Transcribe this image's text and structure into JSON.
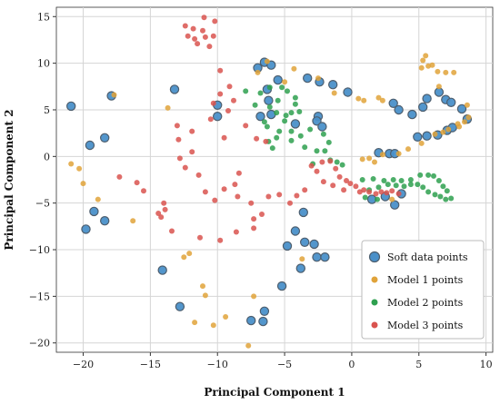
{
  "chart_data": {
    "type": "scatter",
    "title": "",
    "xlabel": "Principal Component 1",
    "ylabel": "Principal Component 2",
    "xlim": [
      -22,
      10.5
    ],
    "ylim": [
      -21,
      16
    ],
    "xticks": [
      -20,
      -15,
      -10,
      -5,
      0,
      5,
      10
    ],
    "yticks": [
      -20,
      -15,
      -10,
      -5,
      0,
      5,
      10,
      15
    ],
    "grid": true,
    "legend_position": "bottom-right",
    "series": [
      {
        "name": "Soft data points",
        "color": "#4a90c9",
        "points": [
          [
            -20.9,
            5.4
          ],
          [
            -19.5,
            1.2
          ],
          [
            -18.4,
            2.0
          ],
          [
            -17.9,
            6.5
          ],
          [
            -13.2,
            7.2
          ],
          [
            -14.1,
            -12.2
          ],
          [
            -12.8,
            -16.1
          ],
          [
            -10.0,
            4.3
          ],
          [
            -7.5,
            -17.6
          ],
          [
            -6.6,
            -17.7
          ],
          [
            -6.5,
            -16.6
          ],
          [
            -5.2,
            -13.9
          ],
          [
            -4.8,
            -9.6
          ],
          [
            -4.2,
            -8.0
          ],
          [
            -3.6,
            -6.0
          ],
          [
            -3.5,
            -9.2
          ],
          [
            -2.8,
            -9.4
          ],
          [
            -2.6,
            -10.8
          ],
          [
            -2.0,
            -10.8
          ],
          [
            -3.8,
            -12.0
          ],
          [
            -19.8,
            -7.8
          ],
          [
            -18.4,
            -6.9
          ],
          [
            -19.2,
            -5.9
          ],
          [
            -7.0,
            9.5
          ],
          [
            -6.5,
            10.1
          ],
          [
            -6.0,
            9.8
          ],
          [
            -5.5,
            8.2
          ],
          [
            -6.3,
            7.2
          ],
          [
            -6.2,
            6.0
          ],
          [
            -6.0,
            4.5
          ],
          [
            -4.2,
            3.5
          ],
          [
            -2.5,
            4.3
          ],
          [
            -2.6,
            3.8
          ],
          [
            -2.2,
            3.2
          ],
          [
            -3.3,
            8.4
          ],
          [
            -2.4,
            8.0
          ],
          [
            -1.4,
            7.7
          ],
          [
            -0.3,
            6.9
          ],
          [
            3.1,
            5.7
          ],
          [
            3.5,
            5.0
          ],
          [
            4.5,
            4.5
          ],
          [
            5.3,
            5.3
          ],
          [
            5.6,
            6.2
          ],
          [
            6.5,
            6.9
          ],
          [
            7.0,
            6.1
          ],
          [
            7.4,
            5.8
          ],
          [
            8.2,
            5.1
          ],
          [
            8.6,
            4.0
          ],
          [
            4.9,
            2.1
          ],
          [
            5.6,
            2.2
          ],
          [
            6.4,
            2.3
          ],
          [
            7.1,
            2.8
          ],
          [
            7.5,
            3.1
          ],
          [
            2.0,
            0.4
          ],
          [
            2.8,
            0.3
          ],
          [
            3.2,
            0.3
          ],
          [
            1.5,
            -4.6
          ],
          [
            2.5,
            -4.3
          ],
          [
            3.2,
            -5.2
          ],
          [
            3.7,
            -4.0
          ],
          [
            -6.8,
            4.3
          ],
          [
            -10.0,
            5.5
          ]
        ]
      },
      {
        "name": "Model 1 points",
        "color": "#e0a33a",
        "points": [
          [
            -20.9,
            -0.8
          ],
          [
            -20.3,
            -1.3
          ],
          [
            -20.0,
            -2.9
          ],
          [
            -18.9,
            -4.6
          ],
          [
            -17.7,
            6.6
          ],
          [
            -16.3,
            -6.9
          ],
          [
            -13.7,
            5.2
          ],
          [
            -12.5,
            -10.8
          ],
          [
            -12.1,
            -10.4
          ],
          [
            -11.1,
            -13.9
          ],
          [
            -10.9,
            -14.9
          ],
          [
            -11.7,
            -17.8
          ],
          [
            -10.3,
            -18.1
          ],
          [
            -9.4,
            -17.2
          ],
          [
            -7.7,
            -20.3
          ],
          [
            -7.3,
            -15.0
          ],
          [
            -3.7,
            -11.0
          ],
          [
            -7.0,
            9.0
          ],
          [
            -6.3,
            10.2
          ],
          [
            -4.3,
            9.4
          ],
          [
            -5.0,
            8.0
          ],
          [
            -2.5,
            8.4
          ],
          [
            -1.3,
            6.8
          ],
          [
            0.5,
            6.2
          ],
          [
            0.9,
            6.0
          ],
          [
            2.0,
            6.3
          ],
          [
            2.3,
            6.0
          ],
          [
            5.2,
            9.5
          ],
          [
            5.3,
            10.3
          ],
          [
            5.5,
            10.8
          ],
          [
            5.7,
            9.7
          ],
          [
            6.0,
            9.8
          ],
          [
            6.4,
            9.1
          ],
          [
            7.0,
            9.0
          ],
          [
            7.6,
            9.0
          ],
          [
            6.5,
            7.5
          ],
          [
            8.6,
            5.5
          ],
          [
            8.7,
            4.2
          ],
          [
            8.4,
            3.7
          ],
          [
            7.9,
            3.5
          ],
          [
            8.0,
            3.2
          ],
          [
            7.2,
            2.9
          ],
          [
            6.8,
            2.6
          ],
          [
            6.2,
            2.4
          ],
          [
            5.2,
            1.4
          ],
          [
            4.2,
            0.8
          ],
          [
            3.5,
            0.3
          ],
          [
            2.3,
            0.2
          ],
          [
            1.7,
            -0.6
          ],
          [
            1.3,
            -0.2
          ],
          [
            0.8,
            -0.3
          ],
          [
            3.0,
            -4.6
          ]
        ]
      },
      {
        "name": "Model 2 points",
        "color": "#2ea04f",
        "points": [
          [
            -7.9,
            7.0
          ],
          [
            -6.8,
            6.8
          ],
          [
            -6.1,
            7.4
          ],
          [
            -5.2,
            7.4
          ],
          [
            -4.8,
            7.0
          ],
          [
            -4.2,
            6.3
          ],
          [
            -5.5,
            6.0
          ],
          [
            -6.1,
            5.3
          ],
          [
            -7.2,
            5.5
          ],
          [
            -5.6,
            4.7
          ],
          [
            -4.9,
            4.4
          ],
          [
            -4.5,
            4.7
          ],
          [
            -3.9,
            4.8
          ],
          [
            -5.0,
            3.8
          ],
          [
            -6.3,
            3.2
          ],
          [
            -5.4,
            2.7
          ],
          [
            -4.5,
            2.7
          ],
          [
            -3.8,
            2.2
          ],
          [
            -3.1,
            2.9
          ],
          [
            -2.1,
            2.4
          ],
          [
            -1.7,
            1.5
          ],
          [
            -2.0,
            0.6
          ],
          [
            -2.6,
            0.6
          ],
          [
            -3.5,
            1.0
          ],
          [
            -4.5,
            1.7
          ],
          [
            -5.6,
            2.0
          ],
          [
            -6.2,
            1.6
          ],
          [
            -5.9,
            0.9
          ],
          [
            -2.9,
            -0.8
          ],
          [
            -1.6,
            -0.4
          ],
          [
            -0.7,
            -0.9
          ],
          [
            0.8,
            -2.5
          ],
          [
            1.6,
            -2.4
          ],
          [
            2.4,
            -2.6
          ],
          [
            3.1,
            -2.5
          ],
          [
            3.7,
            -2.6
          ],
          [
            4.4,
            -2.5
          ],
          [
            5.1,
            -2.0
          ],
          [
            5.7,
            -2.0
          ],
          [
            6.1,
            -2.1
          ],
          [
            6.5,
            -2.6
          ],
          [
            6.8,
            -3.2
          ],
          [
            7.1,
            -3.7
          ],
          [
            7.4,
            -4.5
          ],
          [
            7.0,
            -4.6
          ],
          [
            6.6,
            -4.3
          ],
          [
            6.2,
            -4.1
          ],
          [
            5.7,
            -3.8
          ],
          [
            5.3,
            -3.3
          ],
          [
            4.9,
            -3.0
          ],
          [
            4.4,
            -3.0
          ],
          [
            3.9,
            -3.2
          ],
          [
            3.3,
            -3.1
          ],
          [
            2.7,
            -3.0
          ],
          [
            2.0,
            -3.3
          ],
          [
            1.3,
            -3.6
          ],
          [
            1.0,
            -4.4
          ],
          [
            1.9,
            -4.6
          ],
          [
            -1.1,
            -0.6
          ],
          [
            -4.2,
            5.6
          ],
          [
            -6.5,
            3.7
          ]
        ]
      },
      {
        "name": "Model 3 points",
        "color": "#d9534f",
        "points": [
          [
            -11.0,
            14.9
          ],
          [
            -10.2,
            14.5
          ],
          [
            -12.4,
            14.0
          ],
          [
            -11.8,
            13.7
          ],
          [
            -11.1,
            13.5
          ],
          [
            -12.2,
            12.9
          ],
          [
            -11.7,
            12.6
          ],
          [
            -10.9,
            12.8
          ],
          [
            -10.3,
            12.9
          ],
          [
            -11.5,
            12.1
          ],
          [
            -10.6,
            11.8
          ],
          [
            -9.8,
            9.2
          ],
          [
            -9.1,
            7.5
          ],
          [
            -8.8,
            6.0
          ],
          [
            -9.2,
            4.9
          ],
          [
            -10.5,
            4.0
          ],
          [
            -11.9,
            2.7
          ],
          [
            -12.9,
            1.8
          ],
          [
            -13.0,
            3.3
          ],
          [
            -12.8,
            -0.2
          ],
          [
            -12.4,
            -1.2
          ],
          [
            -11.9,
            0.5
          ],
          [
            -11.4,
            -2.0
          ],
          [
            -10.9,
            -3.8
          ],
          [
            -10.2,
            -4.7
          ],
          [
            -9.5,
            -3.5
          ],
          [
            -8.7,
            -3.0
          ],
          [
            -8.4,
            -1.8
          ],
          [
            -8.5,
            -4.3
          ],
          [
            -7.5,
            -5.0
          ],
          [
            -7.3,
            -6.7
          ],
          [
            -6.7,
            -6.2
          ],
          [
            -6.2,
            -4.3
          ],
          [
            -5.4,
            -4.1
          ],
          [
            -4.6,
            -5.0
          ],
          [
            -4.1,
            -4.2
          ],
          [
            -3.5,
            -3.6
          ],
          [
            -3.0,
            -1.0
          ],
          [
            -2.6,
            -1.6
          ],
          [
            -2.2,
            -0.6
          ],
          [
            -1.6,
            -0.5
          ],
          [
            -1.2,
            -1.3
          ],
          [
            -0.9,
            -2.2
          ],
          [
            -0.4,
            -2.6
          ],
          [
            -0.1,
            -2.9
          ],
          [
            0.3,
            -3.2
          ],
          [
            0.6,
            -3.8
          ],
          [
            0.9,
            -3.6
          ],
          [
            1.3,
            -3.8
          ],
          [
            1.8,
            -4.0
          ],
          [
            2.2,
            -3.8
          ],
          [
            2.6,
            -3.9
          ],
          [
            3.0,
            -3.7
          ],
          [
            3.5,
            -4.0
          ],
          [
            -0.6,
            -3.6
          ],
          [
            -14.2,
            -6.5
          ],
          [
            -14.0,
            -5.0
          ],
          [
            -14.4,
            -6.1
          ],
          [
            -16.0,
            -2.8
          ],
          [
            -15.5,
            -3.7
          ],
          [
            -17.3,
            -2.2
          ],
          [
            -13.4,
            -8.0
          ],
          [
            -11.3,
            -8.7
          ],
          [
            -9.8,
            -9.0
          ],
          [
            -8.6,
            -8.1
          ],
          [
            -7.3,
            -7.7
          ],
          [
            -10.3,
            5.7
          ],
          [
            -9.8,
            6.7
          ],
          [
            -7.9,
            3.3
          ],
          [
            -7.1,
            1.9
          ],
          [
            -6.4,
            1.6
          ],
          [
            -9.5,
            2.0
          ],
          [
            -13.9,
            -5.7
          ],
          [
            -2.1,
            -2.7
          ],
          [
            -1.4,
            -3.1
          ]
        ]
      }
    ]
  }
}
